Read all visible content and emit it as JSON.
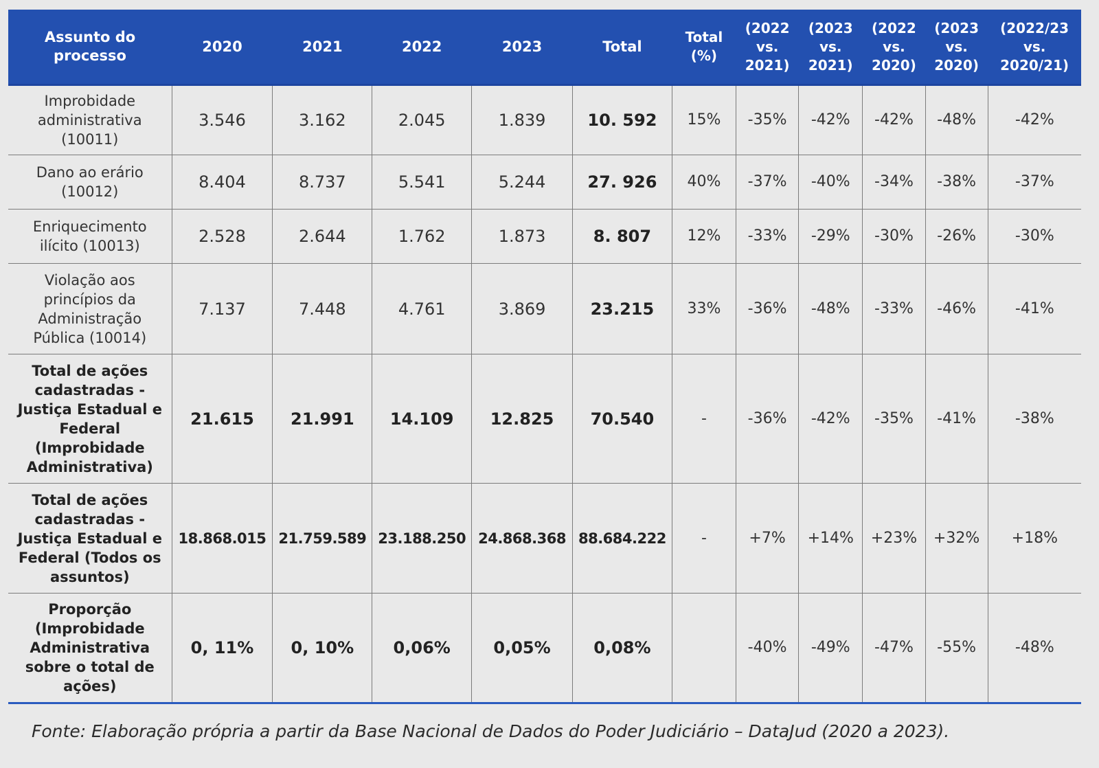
{
  "table": {
    "headers": [
      "Assunto do processo",
      "2020",
      "2021",
      "2022",
      "2023",
      "Total",
      "Total (%)",
      "(2022 vs. 2021)",
      "(2023 vs. 2021)",
      "(2022 vs. 2020)",
      "(2023 vs. 2020)",
      "(2022/23 vs. 2020/21)"
    ],
    "rows": [
      {
        "label": "Improbidade administrativa (10011)",
        "cells": [
          "3.546",
          "3.162",
          "2.045",
          "1.839",
          "10. 592",
          "15%",
          "-35%",
          "-42%",
          "-42%",
          "-48%",
          "-42%"
        ]
      },
      {
        "label": "Dano ao erário (10012)",
        "cells": [
          "8.404",
          "8.737",
          "5.541",
          "5.244",
          "27. 926",
          "40%",
          "-37%",
          "-40%",
          "-34%",
          "-38%",
          "-37%"
        ]
      },
      {
        "label": "Enriquecimento ilícito (10013)",
        "cells": [
          "2.528",
          "2.644",
          "1.762",
          "1.873",
          "8. 807",
          "12%",
          "-33%",
          "-29%",
          "-30%",
          "-26%",
          "-30%"
        ]
      },
      {
        "label": "Violação aos princípios da Administração Pública (10014)",
        "cells": [
          "7.137",
          "7.448",
          "4.761",
          "3.869",
          "23.215",
          "33%",
          "-36%",
          "-48%",
          "-33%",
          "-46%",
          "-41%"
        ]
      },
      {
        "label": "Total de ações cadastradas - Justiça Estadual e Federal (Improbidade Administrativa)",
        "cells": [
          "21.615",
          "21.991",
          "14.109",
          "12.825",
          "70.540",
          "-",
          "-36%",
          "-42%",
          "-35%",
          "-41%",
          "-38%"
        ]
      },
      {
        "label": "Total de ações cadastradas - Justiça Estadual e Federal (Todos os assuntos)",
        "cells": [
          "18.868.015",
          "21.759.589",
          "23.188.250",
          "24.868.368",
          "88.684.222",
          "-",
          "+7%",
          "+14%",
          "+23%",
          "+32%",
          "+18%"
        ]
      },
      {
        "label": "Proporção (Improbidade Administrativa sobre o total de ações)",
        "cells": [
          "0, 11%",
          "0, 10%",
          "0,06%",
          "0,05%",
          "0,08%",
          "",
          "-40%",
          "-49%",
          "-47%",
          "-55%",
          "-48%"
        ]
      }
    ]
  },
  "source_note": "Fonte: Elaboração própria a partir da Base Nacional de Dados do Poder Judiciário – DataJud (2020 a 2023)."
}
